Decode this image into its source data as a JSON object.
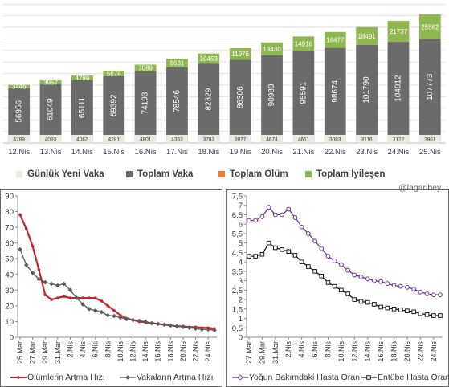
{
  "chart_data": [
    {
      "type": "bar",
      "stacked": true,
      "categories": [
        "12.Nis",
        "13.Nis",
        "14.Nis",
        "15.Nis",
        "16.Nis",
        "17.Nis",
        "18.Nis",
        "19.Nis",
        "20.Nis",
        "21.Nis",
        "22.Nis",
        "23.Nis",
        "24.Nis",
        "25.Nis"
      ],
      "series": [
        {
          "name": "Günlük Yeni Vaka",
          "color": "#ecebdf",
          "values": [
            4789,
            4093,
            4062,
            4281,
            4801,
            4353,
            3783,
            3977,
            4674,
            4611,
            3083,
            3116,
            3122,
            2861
          ]
        },
        {
          "name": "Toplam Vaka",
          "color": "#6b6b6b",
          "values": [
            56956,
            61049,
            65111,
            69392,
            74193,
            78546,
            82329,
            86306,
            90980,
            95591,
            98674,
            101790,
            104912,
            107773
          ]
        },
        {
          "name": "Toplam Ölüm",
          "color": "#ed7d31",
          "values": [
            1198,
            1296,
            1403,
            1518,
            1643,
            1769,
            1890,
            2017,
            2140,
            2259,
            2376,
            2491,
            2600,
            2706
          ]
        },
        {
          "name": "Toplam İyileşen",
          "color": "#8fb750",
          "values": [
            3446,
            3957,
            4799,
            5674,
            7089,
            8631,
            10453,
            11976,
            13430,
            14918,
            16477,
            18491,
            21737,
            25582
          ]
        }
      ],
      "ylim": [
        0,
        145000
      ],
      "grid": true,
      "legend": "bottom"
    },
    {
      "type": "line",
      "x": [
        "25.Mar",
        "26.Mar",
        "27.Mar",
        "28.Mar",
        "29.Mar",
        "30.Mar",
        "31.Mar",
        "1.Nis",
        "2.Nis",
        "3.Nis",
        "4.Nis",
        "5.Nis",
        "6.Nis",
        "7.Nis",
        "8.Nis",
        "9.Nis",
        "10.Nis",
        "11.Nis",
        "12.Nis",
        "13.Nis",
        "14.Nis",
        "15.Nis",
        "16.Nis",
        "17.Nis",
        "18.Nis",
        "19.Nis",
        "20.Nis",
        "21.Nis",
        "22.Nis",
        "23.Nis",
        "24.Nis",
        "25.Nis"
      ],
      "x_tick_labels": [
        "25.Mar",
        "27.Mar",
        "29.Mar",
        "31.Mar",
        "2.Nis",
        "4.Nis",
        "6.Nis",
        "8.Nis",
        "10.Nis",
        "12.Nis",
        "14.Nis",
        "16.Nis",
        "18.Nis",
        "20.Nis",
        "22.Nis",
        "24.Nis"
      ],
      "series": [
        {
          "name": "Ölümlerin Artma Hızı",
          "color": "#c0282d",
          "marker": "circle-small",
          "values": [
            78,
            69,
            58,
            43,
            27,
            24,
            25,
            26,
            25,
            25,
            25,
            25,
            25,
            23,
            20,
            17,
            14,
            12,
            11,
            10,
            9.5,
            9,
            8.5,
            8,
            7.5,
            7,
            7,
            6.5,
            6.5,
            6,
            6,
            5.5
          ]
        },
        {
          "name": "Vakaların Artma Hızı",
          "color": "#5a5a5a",
          "marker": "diamond",
          "values": [
            56,
            46,
            41,
            37,
            35,
            34,
            33,
            34,
            30,
            25,
            21,
            18,
            17,
            16,
            14,
            13.5,
            12.5,
            11.5,
            11,
            10.5,
            10,
            9,
            8.5,
            8,
            7.5,
            7,
            6.5,
            6,
            5.5,
            5,
            5,
            4.5
          ]
        }
      ],
      "ylim": [
        0,
        90
      ],
      "y_ticks": [
        0,
        10,
        20,
        30,
        40,
        50,
        60,
        70,
        80,
        90
      ],
      "legend": "bottom"
    },
    {
      "type": "line",
      "x": [
        "27.Mar",
        "28.Mar",
        "29.Mar",
        "30.Mar",
        "31.Mar",
        "1.Nis",
        "2.Nis",
        "3.Nis",
        "4.Nis",
        "5.Nis",
        "6.Nis",
        "7.Nis",
        "8.Nis",
        "9.Nis",
        "10.Nis",
        "11.Nis",
        "12.Nis",
        "13.Nis",
        "14.Nis",
        "15.Nis",
        "16.Nis",
        "17.Nis",
        "18.Nis",
        "19.Nis",
        "20.Nis",
        "21.Nis",
        "22.Nis",
        "23.Nis",
        "24.Nis",
        "25.Nis"
      ],
      "x_tick_labels": [
        "27.Mar",
        "29.Mar",
        "31.Mar",
        "2.Nis",
        "4.Nis",
        "6.Nis",
        "8.Nis",
        "10.Nis",
        "12.Nis",
        "14.Nis",
        "16.Nis",
        "18.Nis",
        "20.Nis",
        "22.Nis",
        "24.Nis"
      ],
      "series": [
        {
          "name": "Yoğun Bakımdaki Hasta Oranı",
          "color": "#7030a0",
          "marker": "circle-open",
          "values": [
            6.2,
            6.2,
            6.4,
            6.9,
            6.5,
            6.5,
            6.8,
            6.35,
            5.85,
            5.5,
            5.1,
            4.7,
            4.3,
            4.05,
            3.85,
            3.55,
            3.3,
            3.2,
            3.1,
            3.0,
            2.95,
            2.85,
            2.75,
            2.7,
            2.65,
            2.55,
            2.4,
            2.3,
            2.25,
            2.25
          ]
        },
        {
          "name": "Entübe Hasta Oranı",
          "color": "#1a1a1a",
          "marker": "square-open",
          "values": [
            4.3,
            4.3,
            4.4,
            5.0,
            4.75,
            4.65,
            4.55,
            4.35,
            4.0,
            3.75,
            3.5,
            3.25,
            2.9,
            2.7,
            2.5,
            2.3,
            2.0,
            1.9,
            1.85,
            1.75,
            1.6,
            1.55,
            1.5,
            1.45,
            1.4,
            1.35,
            1.25,
            1.2,
            1.15,
            1.15
          ]
        }
      ],
      "ylim": [
        0,
        7.5
      ],
      "y_ticks": [
        0,
        0.5,
        1,
        1.5,
        2,
        2.5,
        3,
        3.5,
        4,
        4.5,
        5,
        5.5,
        6,
        6.5,
        7,
        7.5
      ],
      "legend": "bottom"
    }
  ],
  "credit": "@lagaribey"
}
